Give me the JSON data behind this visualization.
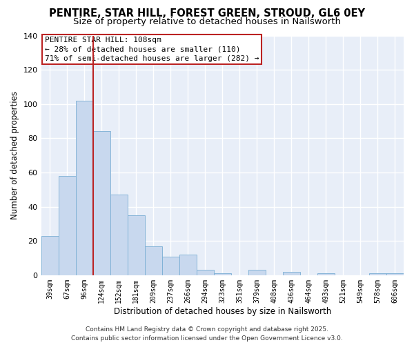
{
  "title_line1": "PENTIRE, STAR HILL, FOREST GREEN, STROUD, GL6 0EY",
  "title_line2": "Size of property relative to detached houses in Nailsworth",
  "xlabel": "Distribution of detached houses by size in Nailsworth",
  "ylabel": "Number of detached properties",
  "bar_labels": [
    "39sqm",
    "67sqm",
    "96sqm",
    "124sqm",
    "152sqm",
    "181sqm",
    "209sqm",
    "237sqm",
    "266sqm",
    "294sqm",
    "323sqm",
    "351sqm",
    "379sqm",
    "408sqm",
    "436sqm",
    "464sqm",
    "493sqm",
    "521sqm",
    "549sqm",
    "578sqm",
    "606sqm"
  ],
  "bar_values": [
    23,
    58,
    102,
    84,
    47,
    35,
    17,
    11,
    12,
    3,
    1,
    0,
    3,
    0,
    2,
    0,
    1,
    0,
    0,
    1,
    1
  ],
  "bar_color": "#c8d8ee",
  "bar_edge_color": "#7aaed4",
  "ylim": [
    0,
    140
  ],
  "yticks": [
    0,
    20,
    40,
    60,
    80,
    100,
    120,
    140
  ],
  "vline_index": 2.5,
  "vline_color": "#bb2222",
  "annotation_title": "PENTIRE STAR HILL: 108sqm",
  "annotation_line1": "← 28% of detached houses are smaller (110)",
  "annotation_line2": "71% of semi-detached houses are larger (282) →",
  "annotation_box_color": "#ffffff",
  "annotation_box_edge": "#bb2222",
  "footer_line1": "Contains HM Land Registry data © Crown copyright and database right 2025.",
  "footer_line2": "Contains public sector information licensed under the Open Government Licence v3.0.",
  "plot_bg_color": "#e8eef8",
  "fig_bg_color": "#ffffff",
  "grid_color": "#ffffff",
  "title_fontsize": 10.5,
  "subtitle_fontsize": 9.5,
  "axis_label_fontsize": 8.5,
  "tick_fontsize": 7,
  "annotation_fontsize": 8,
  "footer_fontsize": 6.5
}
